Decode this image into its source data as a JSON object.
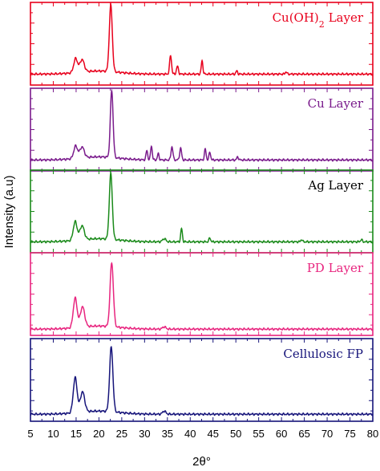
{
  "chart_data": {
    "type": "line",
    "stacked_panels": true,
    "xlabel": "2θ°",
    "ylabel": "Intensity (a.u)",
    "xlim": [
      5,
      80
    ],
    "x_ticks": [
      5,
      10,
      15,
      20,
      25,
      30,
      35,
      40,
      45,
      50,
      55,
      60,
      65,
      70,
      75,
      80
    ],
    "grid": false,
    "legend": "none",
    "series": [
      {
        "name": "Cu(OH)2 Layer",
        "label_main": "Cu(OH)",
        "label_sub": "2",
        "label_tail": " Layer",
        "color": "#e8001c",
        "baseline": 0.12,
        "ymax": 1.0,
        "peaks": [
          {
            "x": 14.9,
            "h": 0.18,
            "w": 0.7
          },
          {
            "x": 16.3,
            "h": 0.16,
            "w": 0.8
          },
          {
            "x": 22.6,
            "h": 0.85,
            "w": 0.55
          },
          {
            "x": 35.7,
            "h": 0.24,
            "w": 0.35
          },
          {
            "x": 37.2,
            "h": 0.1,
            "w": 0.35
          },
          {
            "x": 42.6,
            "h": 0.17,
            "w": 0.3
          },
          {
            "x": 50.2,
            "h": 0.04,
            "w": 0.3
          },
          {
            "x": 61.0,
            "h": 0.03,
            "w": 0.3
          }
        ]
      },
      {
        "name": "Cu Layer",
        "label_main": "Cu Layer",
        "color": "#7a1b8c",
        "baseline": 0.12,
        "ymax": 1.0,
        "peaks": [
          {
            "x": 14.9,
            "h": 0.16,
            "w": 0.7
          },
          {
            "x": 16.3,
            "h": 0.14,
            "w": 0.8
          },
          {
            "x": 22.8,
            "h": 0.86,
            "w": 0.5
          },
          {
            "x": 30.5,
            "h": 0.12,
            "w": 0.3
          },
          {
            "x": 31.5,
            "h": 0.18,
            "w": 0.3
          },
          {
            "x": 33.0,
            "h": 0.08,
            "w": 0.3
          },
          {
            "x": 36.0,
            "h": 0.17,
            "w": 0.35
          },
          {
            "x": 37.9,
            "h": 0.15,
            "w": 0.35
          },
          {
            "x": 43.3,
            "h": 0.14,
            "w": 0.3
          },
          {
            "x": 44.3,
            "h": 0.1,
            "w": 0.3
          },
          {
            "x": 50.4,
            "h": 0.04,
            "w": 0.3
          }
        ]
      },
      {
        "name": "Ag Layer",
        "label_main": "Ag Layer",
        "label_color": "#000000",
        "color": "#1a8a1a",
        "baseline": 0.12,
        "ymax": 1.0,
        "peaks": [
          {
            "x": 14.8,
            "h": 0.24,
            "w": 0.7
          },
          {
            "x": 16.3,
            "h": 0.18,
            "w": 0.8
          },
          {
            "x": 22.6,
            "h": 0.84,
            "w": 0.55
          },
          {
            "x": 34.3,
            "h": 0.04,
            "w": 0.6
          },
          {
            "x": 38.1,
            "h": 0.17,
            "w": 0.3
          },
          {
            "x": 44.3,
            "h": 0.05,
            "w": 0.3
          },
          {
            "x": 64.4,
            "h": 0.03,
            "w": 0.3
          },
          {
            "x": 77.5,
            "h": 0.03,
            "w": 0.3
          }
        ]
      },
      {
        "name": "PD Layer",
        "label_main": "PD Layer",
        "color": "#e8257f",
        "baseline": 0.06,
        "ymax": 1.0,
        "peaks": [
          {
            "x": 14.8,
            "h": 0.38,
            "w": 0.7
          },
          {
            "x": 16.4,
            "h": 0.26,
            "w": 0.8
          },
          {
            "x": 22.8,
            "h": 0.82,
            "w": 0.6
          },
          {
            "x": 34.3,
            "h": 0.03,
            "w": 0.6
          }
        ]
      },
      {
        "name": "Cellulosic FP",
        "label_main": "Cellulosic FP",
        "color": "#16147a",
        "baseline": 0.07,
        "ymax": 1.0,
        "peaks": [
          {
            "x": 14.8,
            "h": 0.45,
            "w": 0.7
          },
          {
            "x": 16.4,
            "h": 0.26,
            "w": 0.8
          },
          {
            "x": 22.7,
            "h": 0.83,
            "w": 0.6
          },
          {
            "x": 34.3,
            "h": 0.04,
            "w": 0.6
          }
        ]
      }
    ]
  }
}
